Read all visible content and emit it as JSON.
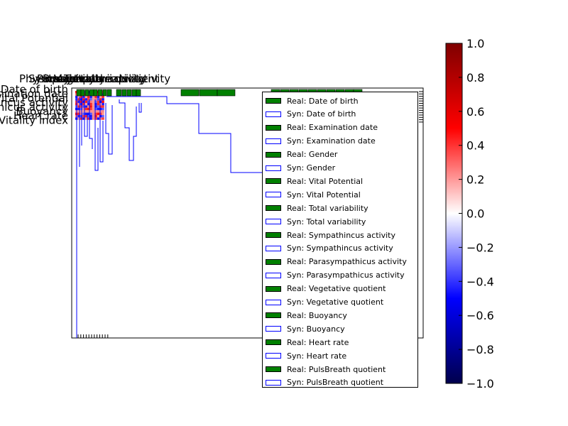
{
  "chart_data": {
    "type": "heatmap",
    "variables": [
      "Date of birth",
      "Examination date",
      "Gender",
      "Vital Potential",
      "Total variability",
      "Sympathincus activity",
      "Parasympathicus activity",
      "Vegetative quotient",
      "Buoyancy",
      "Heart rate",
      "PulsBreath quotient",
      "Vitality index"
    ],
    "x_tick_labels_overlapping": [
      "Physical activity",
      "Sympathincus activity",
      "Parasympathicus activity",
      "Buoyancy",
      "Heart rate",
      "Vegetative quotient",
      "Total variability"
    ],
    "y_tick_labels_visible": [
      "Date of birth",
      "Examination date",
      "Vital Potential",
      "Sympathincus activity",
      "Parasympathicus activity",
      "Buoyancy",
      "Heart rate",
      "Vitality index"
    ],
    "colorbar": {
      "min": -1.0,
      "max": 1.0,
      "ticks": [
        "1.0",
        "0.8",
        "0.6",
        "0.4",
        "0.2",
        "0.0",
        "−0.2",
        "−0.4",
        "−0.6",
        "−0.8",
        "−1.0"
      ],
      "tick_values": [
        1.0,
        0.8,
        0.6,
        0.4,
        0.2,
        0.0,
        -0.2,
        -0.4,
        -0.6,
        -0.8,
        -1.0
      ],
      "colormap": "seismic"
    },
    "series": [
      {
        "name": "Real: Date of birth",
        "style": "filled",
        "color": "#008000"
      },
      {
        "name": "Syn: Date of birth",
        "style": "outline",
        "color": "#0000ff"
      },
      {
        "name": "Real: Examination date",
        "style": "filled",
        "color": "#008000"
      },
      {
        "name": "Syn: Examination date",
        "style": "outline",
        "color": "#0000ff"
      },
      {
        "name": "Real: Gender",
        "style": "filled",
        "color": "#008000"
      },
      {
        "name": "Syn: Gender",
        "style": "outline",
        "color": "#0000ff"
      },
      {
        "name": "Real: Vital Potential",
        "style": "filled",
        "color": "#008000"
      },
      {
        "name": "Syn: Vital Potential",
        "style": "outline",
        "color": "#0000ff"
      },
      {
        "name": "Real: Total variability",
        "style": "filled",
        "color": "#008000"
      },
      {
        "name": "Syn: Total variability",
        "style": "outline",
        "color": "#0000ff"
      },
      {
        "name": "Real: Sympathincus activity",
        "style": "filled",
        "color": "#008000"
      },
      {
        "name": "Syn: Sympathincus activity",
        "style": "outline",
        "color": "#0000ff"
      },
      {
        "name": "Real: Parasympathicus activity",
        "style": "filled",
        "color": "#008000"
      },
      {
        "name": "Syn: Parasympathicus activity",
        "style": "outline",
        "color": "#0000ff"
      },
      {
        "name": "Real: Vegetative quotient",
        "style": "filled",
        "color": "#008000"
      },
      {
        "name": "Syn: Vegetative quotient",
        "style": "outline",
        "color": "#0000ff"
      },
      {
        "name": "Real: Buoyancy",
        "style": "filled",
        "color": "#008000"
      },
      {
        "name": "Syn: Buoyancy",
        "style": "outline",
        "color": "#0000ff"
      },
      {
        "name": "Real: Heart rate",
        "style": "filled",
        "color": "#008000"
      },
      {
        "name": "Syn: Heart rate",
        "style": "outline",
        "color": "#0000ff"
      },
      {
        "name": "Real: PulsBreath quotient",
        "style": "filled",
        "color": "#008000"
      },
      {
        "name": "Syn: PulsBreath quotient",
        "style": "outline",
        "color": "#0000ff"
      }
    ],
    "legend_placement": "lower-right",
    "grid": false,
    "colors": {
      "real": "#008000",
      "syn": "#0000ff",
      "heat_pos": "#ff0000",
      "heat_neg": "#0000ff"
    }
  }
}
